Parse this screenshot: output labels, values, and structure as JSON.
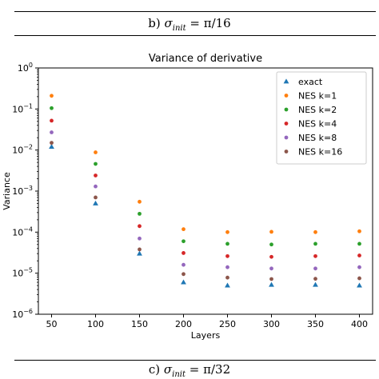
{
  "captions": {
    "top": {
      "prefix": "b) ",
      "sigma": "σ",
      "sub": "init",
      "rest": " = π/16"
    },
    "bottom": {
      "prefix": "c) ",
      "sigma": "σ",
      "sub": "init",
      "rest": " = π/32"
    }
  },
  "chart_data": {
    "type": "scatter",
    "title": "Variance of derivative",
    "xlabel": "Layers",
    "ylabel": "Variance",
    "yscale": "log",
    "ylim": [
      1e-06,
      1
    ],
    "xlim": [
      35,
      415
    ],
    "x": [
      50,
      100,
      150,
      200,
      250,
      300,
      350,
      400
    ],
    "xticks": [
      "50",
      "100",
      "150",
      "200",
      "250",
      "300",
      "350",
      "400"
    ],
    "yticks": [
      {
        "base": "10",
        "exp": "0",
        "value": 1
      },
      {
        "base": "10",
        "exp": "−1",
        "value": 0.1
      },
      {
        "base": "10",
        "exp": "−2",
        "value": 0.01
      },
      {
        "base": "10",
        "exp": "−3",
        "value": 0.001
      },
      {
        "base": "10",
        "exp": "−4",
        "value": 0.0001
      },
      {
        "base": "10",
        "exp": "−5",
        "value": 1e-05
      },
      {
        "base": "10",
        "exp": "−6",
        "value": 1e-06
      }
    ],
    "grid": false,
    "legend_position": "top-right",
    "series": [
      {
        "name": "exact",
        "marker": "triangle",
        "color": "#1f77b4",
        "values": [
          0.012,
          0.0005,
          3e-05,
          6e-06,
          5e-06,
          5.2e-06,
          5.2e-06,
          5e-06
        ]
      },
      {
        "name": "NES k=1",
        "marker": "circle",
        "color": "#ff7f0e",
        "values": [
          0.21,
          0.0088,
          0.00055,
          0.000118,
          0.0001,
          0.000102,
          0.0001,
          0.000105
        ]
      },
      {
        "name": "NES k=2",
        "marker": "circle",
        "color": "#2ca02c",
        "values": [
          0.105,
          0.0046,
          0.00028,
          6e-05,
          5.2e-05,
          5e-05,
          5.2e-05,
          5.2e-05
        ]
      },
      {
        "name": "NES k=4",
        "marker": "circle",
        "color": "#d62728",
        "values": [
          0.052,
          0.0024,
          0.00014,
          3.1e-05,
          2.6e-05,
          2.5e-05,
          2.6e-05,
          2.7e-05
        ]
      },
      {
        "name": "NES k=8",
        "marker": "circle",
        "color": "#9467bd",
        "values": [
          0.027,
          0.0013,
          7e-05,
          1.6e-05,
          1.4e-05,
          1.3e-05,
          1.3e-05,
          1.4e-05
        ]
      },
      {
        "name": "NES k=16",
        "marker": "circle",
        "color": "#8c564b",
        "values": [
          0.015,
          0.0007,
          3.8e-05,
          9.5e-06,
          7.8e-06,
          7.2e-06,
          7.3e-06,
          7.5e-06
        ]
      }
    ]
  }
}
